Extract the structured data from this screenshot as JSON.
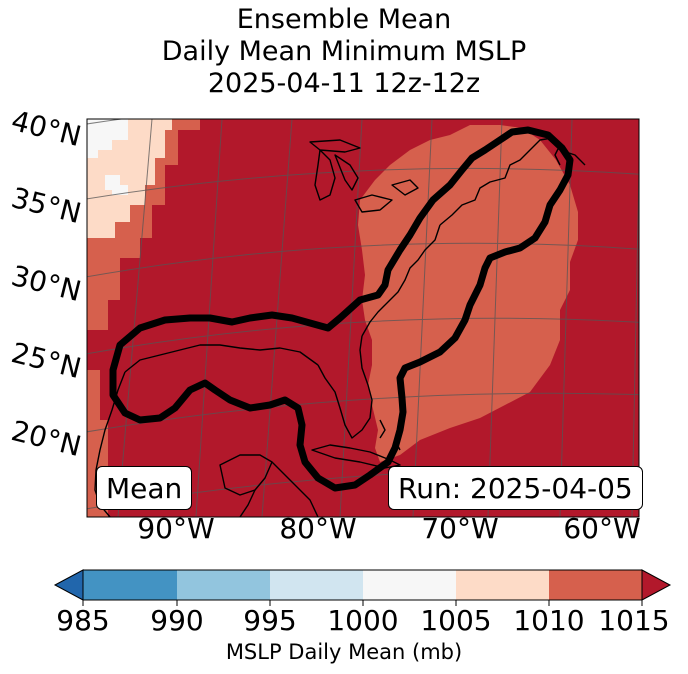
{
  "title": {
    "line1": "Ensemble Mean",
    "line2": "Daily Mean Minimum MSLP",
    "line3": "2025-04-11 12z-12z"
  },
  "lat_labels": [
    "40°N",
    "35°N",
    "30°N",
    "25°N",
    "20°N"
  ],
  "lon_labels": [
    "90°W",
    "80°W",
    "70°W",
    "60°W"
  ],
  "mean_label": "Mean",
  "run_label": "Run: 2025-04-05",
  "colorbar": {
    "ticks": [
      "985",
      "990",
      "995",
      "1000",
      "1005",
      "1010",
      "1015"
    ],
    "bins": [
      {
        "range": "<985",
        "color": "#2166ac"
      },
      {
        "range": "985-990",
        "color": "#4393c3"
      },
      {
        "range": "990-995",
        "color": "#92c5de"
      },
      {
        "range": "995-1000",
        "color": "#d1e5f0"
      },
      {
        "range": "1000-1005",
        "color": "#f7f7f7"
      },
      {
        "range": "1005-1010",
        "color": "#fddbc7"
      },
      {
        "range": "1010-1015",
        "color": "#d6604d"
      },
      {
        "range": ">1015",
        "color": "#b2182b"
      }
    ],
    "label": "MSLP Daily Mean (mb)"
  },
  "colors": {
    "dark_red": "#b2182b",
    "medium_red": "#d6604d",
    "light_peach": "#fddbc7",
    "near_white": "#f7f7f7",
    "contour": "#000000"
  }
}
